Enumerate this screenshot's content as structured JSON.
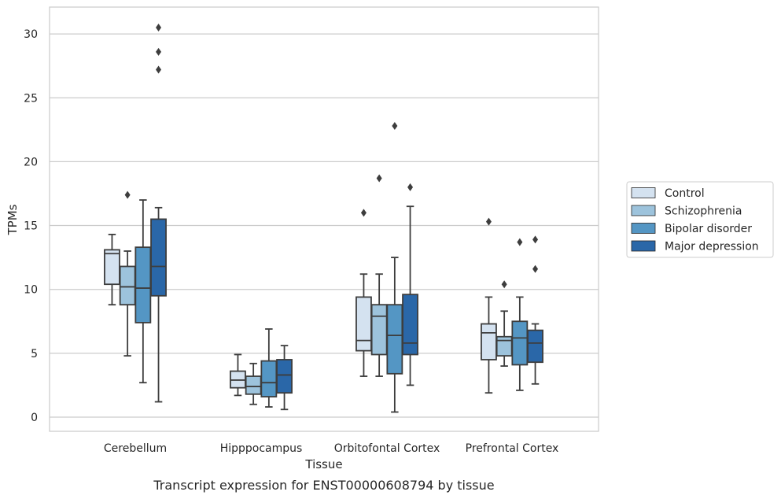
{
  "chart_data": {
    "type": "box",
    "title": "Transcript expression for ENST00000608794 by tissue",
    "xlabel": "Tissue",
    "ylabel": "TPMs",
    "ylim": [
      -1.1,
      32
    ],
    "yticks": [
      0,
      5,
      10,
      15,
      20,
      25,
      30
    ],
    "grid": "horizontal",
    "legend_position": "right",
    "categories": [
      "Cerebellum",
      "Hipppocampus",
      "Orbitofontal Cortex",
      "Prefrontal Cortex"
    ],
    "series": [
      {
        "name": "Control",
        "color": "#d4e2f0",
        "boxes": [
          {
            "whislo": 8.8,
            "q1": 10.4,
            "med": 12.8,
            "q3": 13.1,
            "whishi": 14.3,
            "fliers": []
          },
          {
            "whislo": 1.7,
            "q1": 2.3,
            "med": 2.9,
            "q3": 3.6,
            "whishi": 4.9,
            "fliers": []
          },
          {
            "whislo": 3.2,
            "q1": 5.2,
            "med": 6.0,
            "q3": 9.4,
            "whishi": 11.2,
            "fliers": [
              16.0
            ]
          },
          {
            "whislo": 1.9,
            "q1": 4.5,
            "med": 6.6,
            "q3": 7.3,
            "whishi": 9.4,
            "fliers": [
              15.3
            ]
          }
        ]
      },
      {
        "name": "Schizophrenia",
        "color": "#9dc3dc",
        "boxes": [
          {
            "whislo": 4.8,
            "q1": 8.8,
            "med": 10.2,
            "q3": 11.8,
            "whishi": 13.0,
            "fliers": [
              17.4
            ]
          },
          {
            "whislo": 1.0,
            "q1": 1.8,
            "med": 2.4,
            "q3": 3.2,
            "whishi": 4.2,
            "fliers": []
          },
          {
            "whislo": 3.2,
            "q1": 4.9,
            "med": 7.9,
            "q3": 8.8,
            "whishi": 11.2,
            "fliers": [
              18.7
            ]
          },
          {
            "whislo": 4.0,
            "q1": 4.8,
            "med": 6.0,
            "q3": 6.3,
            "whishi": 8.3,
            "fliers": [
              10.4
            ]
          }
        ]
      },
      {
        "name": "Bipolar disorder",
        "color": "#5496c4",
        "boxes": [
          {
            "whislo": 2.7,
            "q1": 7.4,
            "med": 10.1,
            "q3": 13.3,
            "whishi": 17.0,
            "fliers": []
          },
          {
            "whislo": 0.8,
            "q1": 1.6,
            "med": 2.7,
            "q3": 4.4,
            "whishi": 6.9,
            "fliers": []
          },
          {
            "whislo": 0.4,
            "q1": 3.4,
            "med": 6.4,
            "q3": 8.8,
            "whishi": 12.5,
            "fliers": [
              22.8
            ]
          },
          {
            "whislo": 2.1,
            "q1": 4.1,
            "med": 6.2,
            "q3": 7.5,
            "whishi": 9.4,
            "fliers": [
              13.7
            ]
          }
        ]
      },
      {
        "name": "Major depression",
        "color": "#2a67a8",
        "boxes": [
          {
            "whislo": 1.2,
            "q1": 9.5,
            "med": 11.8,
            "q3": 15.5,
            "whishi": 16.4,
            "fliers": [
              27.2,
              28.6,
              30.5
            ]
          },
          {
            "whislo": 0.6,
            "q1": 1.9,
            "med": 3.3,
            "q3": 4.5,
            "whishi": 5.6,
            "fliers": []
          },
          {
            "whislo": 2.5,
            "q1": 4.9,
            "med": 5.8,
            "q3": 9.6,
            "whishi": 16.5,
            "fliers": [
              18.0
            ]
          },
          {
            "whislo": 2.6,
            "q1": 4.3,
            "med": 5.8,
            "q3": 6.8,
            "whishi": 7.3,
            "fliers": [
              11.6,
              13.9
            ]
          }
        ]
      }
    ]
  }
}
